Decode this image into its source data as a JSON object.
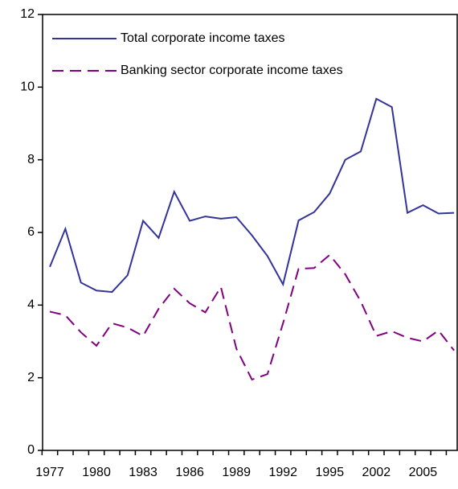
{
  "chart_data": {
    "type": "line",
    "categories": [
      "1977",
      null,
      null,
      "1980",
      null,
      null,
      "1983",
      null,
      null,
      "1986",
      null,
      null,
      "1989",
      null,
      null,
      "1992",
      null,
      null,
      "1995",
      null,
      null,
      "2002",
      null,
      null,
      "2005",
      null,
      null
    ],
    "series": [
      {
        "name": "Total corporate income taxes",
        "color": "#333399",
        "dash": false,
        "values": [
          5.05,
          6.1,
          4.62,
          4.4,
          4.36,
          4.82,
          6.32,
          5.85,
          7.12,
          6.32,
          6.44,
          6.38,
          6.42,
          5.92,
          5.35,
          4.57,
          6.33,
          6.56,
          7.07,
          8.0,
          8.23,
          9.68,
          9.45,
          6.54,
          6.75,
          6.52,
          6.54
        ]
      },
      {
        "name": "Banking sector corporate income taxes",
        "color": "#800080",
        "dash": true,
        "values": [
          3.82,
          3.72,
          3.25,
          2.88,
          3.5,
          3.38,
          3.15,
          3.9,
          4.45,
          4.05,
          3.8,
          4.5,
          2.8,
          1.95,
          2.1,
          3.5,
          5.0,
          5.02,
          5.38,
          4.85,
          4.1,
          3.15,
          3.28,
          3.1,
          3.0,
          3.3,
          2.75
        ]
      }
    ],
    "ylim": [
      0,
      12
    ],
    "yticks": [
      0,
      2,
      4,
      6,
      8,
      10,
      12
    ],
    "legend": "top-left"
  }
}
